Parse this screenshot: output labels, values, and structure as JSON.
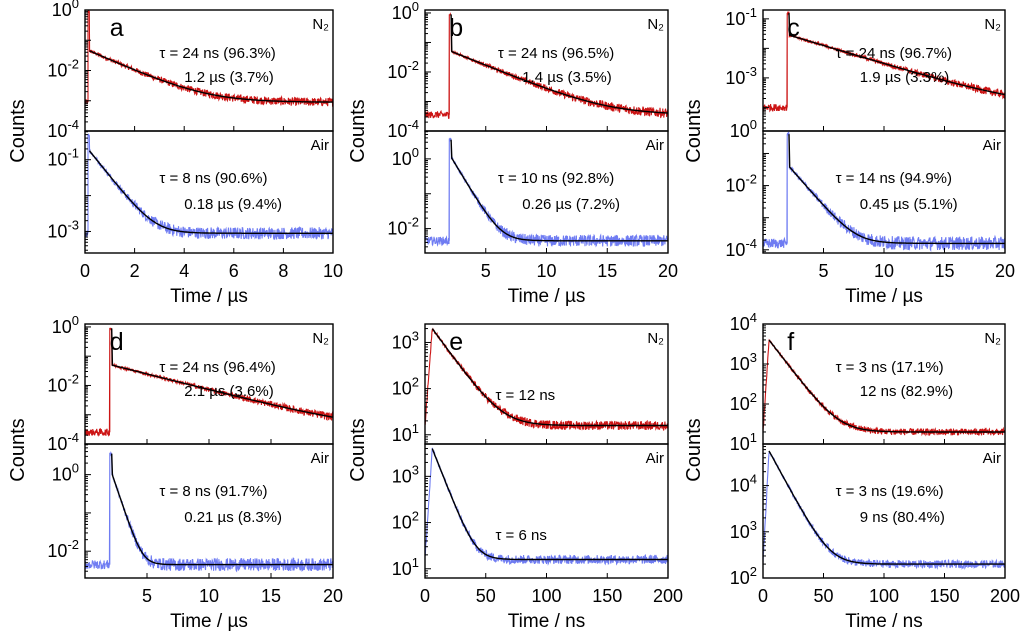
{
  "figure": {
    "ylabel": "Counts"
  },
  "colors": {
    "n2": "#cc1414",
    "air": "#6f7cf2",
    "fit": "#000000"
  },
  "chart_data": [
    {
      "id": "a",
      "type": "line",
      "letter": "a",
      "xlabel": "Time /  µs",
      "xlim": [
        0,
        10
      ],
      "xticks": [
        0,
        2,
        4,
        6,
        8,
        10
      ],
      "xticklabels": [
        "0",
        "2",
        "4",
        "6",
        "8",
        "10"
      ],
      "panels": [
        {
          "condition": "N₂",
          "log_ylim": [
            -4,
            0
          ],
          "tick_exps": [
            -4,
            -2,
            0
          ],
          "tick_labels": [
            "10-4",
            "10-2",
            "100"
          ],
          "annotations": [
            "τ = 24 ns (96.3%)",
            "1.2 µs (3.7%)"
          ],
          "decay": {
            "t0": 0.12,
            "rise": 0.06,
            "peak_log": -0.05,
            "jump_log": -1.35,
            "tail_tau": 1.2,
            "base_log": -3.05,
            "noise": 0.1
          }
        },
        {
          "condition": "Air",
          "log_ylim": [
            -3.6,
            -0.2
          ],
          "tick_exps": [
            -3,
            -1
          ],
          "tick_labels": [
            "10-3",
            "10-1"
          ],
          "annotations": [
            "τ = 8 ns (90.6%)",
            "0.18 µs (9.4%)"
          ],
          "decay": {
            "t0": 0.12,
            "rise": 0.06,
            "peak_log": -0.3,
            "jump_log": -0.75,
            "tail_tau": 0.5,
            "base_log": -3.05,
            "noise": 0.12
          }
        }
      ]
    },
    {
      "id": "b",
      "type": "line",
      "letter": "b",
      "xlabel": "Time /  µs",
      "xlim": [
        0,
        20
      ],
      "xticks": [
        5,
        10,
        15,
        20
      ],
      "xticklabels": [
        "5",
        "10",
        "15",
        "20"
      ],
      "panels": [
        {
          "condition": "N₂",
          "log_ylim": [
            -4,
            0.1
          ],
          "tick_exps": [
            -4,
            -2,
            0
          ],
          "tick_labels": [
            "10-4",
            "10-2",
            "100"
          ],
          "annotations": [
            "τ = 24 ns (96.5%)",
            "1.4 µs (3.5%)"
          ],
          "decay": {
            "t0": 2.0,
            "rise": 0.15,
            "peak_log": -0.05,
            "jump_log": -1.3,
            "tail_tau": 2.6,
            "base_log": -3.45,
            "noise": 0.12
          }
        },
        {
          "condition": "Air",
          "log_ylim": [
            -2.7,
            0.8
          ],
          "tick_exps": [
            -2,
            0
          ],
          "tick_labels": [
            "10-2",
            "100"
          ],
          "annotations": [
            "τ = 10 ns (92.8%)",
            "0.26 µs (7.2%)"
          ],
          "decay": {
            "t0": 2.0,
            "rise": 0.15,
            "peak_log": 0.55,
            "jump_log": 0.05,
            "tail_tau": 0.75,
            "base_log": -2.35,
            "noise": 0.12
          }
        }
      ]
    },
    {
      "id": "c",
      "type": "line",
      "letter": "c",
      "xlabel": "Time /  µs",
      "xlim": [
        0,
        20
      ],
      "xticks": [
        5,
        10,
        15,
        20
      ],
      "xticklabels": [
        "5",
        "10",
        "15",
        "20"
      ],
      "panels": [
        {
          "condition": "N₂",
          "log_ylim": [
            -4.8,
            -0.7
          ],
          "tick_exps": [
            -3,
            -1
          ],
          "tick_labels": [
            "10-3",
            "10-1"
          ],
          "extra_tick_label": "100",
          "annotations": [
            "τ = 24 ns (96.7%)",
            "1.9 µs (3.3%)"
          ],
          "decay": {
            "t0": 2.0,
            "rise": 0.15,
            "peak_log": -0.8,
            "jump_log": -1.55,
            "tail_tau": 3.5,
            "base_log": -4.0,
            "noise": 0.12
          }
        },
        {
          "condition": "Air",
          "log_ylim": [
            -4.1,
            -0.3
          ],
          "tick_exps": [
            -4,
            -2
          ],
          "tick_labels": [
            "10-4",
            "10-2"
          ],
          "annotations": [
            "τ = 14 ns (94.9%)",
            "0.45 µs (5.1%)"
          ],
          "decay": {
            "t0": 2.0,
            "rise": 0.15,
            "peak_log": -0.4,
            "jump_log": -1.4,
            "tail_tau": 1.0,
            "base_log": -3.8,
            "noise": 0.15
          }
        }
      ]
    },
    {
      "id": "d",
      "type": "line",
      "letter": "d",
      "xlabel": "Time /  µs",
      "xlim": [
        0,
        20
      ],
      "xticks": [
        5,
        10,
        15,
        20
      ],
      "xticklabels": [
        "5",
        "10",
        "15",
        "20"
      ],
      "panels": [
        {
          "condition": "N₂",
          "log_ylim": [
            -4,
            0.1
          ],
          "tick_exps": [
            -4,
            -2,
            0
          ],
          "tick_labels": [
            "10-4",
            "10-2",
            "100"
          ],
          "annotations": [
            "τ = 24 ns (96.4%)",
            "2.1 µs (3.6%)"
          ],
          "decay": {
            "t0": 2.0,
            "rise": 0.15,
            "peak_log": -0.05,
            "jump_log": -1.3,
            "tail_tau": 4.0,
            "base_log": -3.6,
            "noise": 0.12
          }
        },
        {
          "condition": "Air",
          "log_ylim": [
            -2.7,
            0.8
          ],
          "tick_exps": [
            -2,
            0
          ],
          "tick_labels": [
            "10-2",
            "100"
          ],
          "annotations": [
            "τ = 8 ns (91.7%)",
            "0.21 µs (8.3%)"
          ],
          "decay": {
            "t0": 2.0,
            "rise": 0.15,
            "peak_log": 0.55,
            "jump_log": 0.05,
            "tail_tau": 0.45,
            "base_log": -2.35,
            "noise": 0.12
          }
        }
      ]
    },
    {
      "id": "e",
      "type": "line",
      "letter": "e",
      "xlabel": "Time /  ns",
      "xlim": [
        0,
        200
      ],
      "xticks": [
        0,
        50,
        100,
        150,
        200
      ],
      "xticklabels": [
        "0",
        "50",
        "100",
        "150",
        "200"
      ],
      "panels": [
        {
          "condition": "N₂",
          "log_ylim": [
            0.8,
            3.4
          ],
          "tick_exps": [
            1,
            2,
            3
          ],
          "tick_labels": [
            "101",
            "102",
            "103"
          ],
          "annotations": [
            "τ = 12 ns"
          ],
          "decay": {
            "t0": 0,
            "rise": 6,
            "peak_log": 3.3,
            "jump_log": 3.3,
            "tail_tau": 12,
            "base_log": 1.2,
            "noise": 0.07,
            "smooth_rise": true
          }
        },
        {
          "condition": "Air",
          "log_ylim": [
            0.8,
            3.7
          ],
          "tick_exps": [
            1,
            2,
            3
          ],
          "tick_labels": [
            "101",
            "102",
            "103"
          ],
          "annotations": [
            "τ = 6 ns"
          ],
          "decay": {
            "t0": 0,
            "rise": 6,
            "peak_log": 3.6,
            "jump_log": 3.6,
            "tail_tau": 6.5,
            "base_log": 1.2,
            "noise": 0.07,
            "smooth_rise": true
          }
        }
      ]
    },
    {
      "id": "f",
      "type": "line",
      "letter": "f",
      "xlabel": "Time / ns",
      "xlim": [
        0,
        200
      ],
      "xticks": [
        0,
        50,
        100,
        150,
        200
      ],
      "xticklabels": [
        "0",
        "50",
        "100",
        "150",
        "200"
      ],
      "panels": [
        {
          "condition": "N₂",
          "log_ylim": [
            1,
            4
          ],
          "tick_exps": [
            1,
            2,
            3,
            4
          ],
          "tick_labels": [
            "101",
            "102",
            "103",
            "104"
          ],
          "annotations": [
            "τ = 3 ns (17.1%)",
            "12 ns (82.9%)"
          ],
          "decay": {
            "t0": 0,
            "rise": 5,
            "peak_log": 3.6,
            "jump_log": 3.6,
            "tail_tau": 11,
            "base_log": 1.3,
            "noise": 0.06,
            "smooth_rise": true
          }
        },
        {
          "condition": "Air",
          "log_ylim": [
            2,
            4.9
          ],
          "tick_exps": [
            2,
            3,
            4
          ],
          "tick_labels": [
            "102",
            "103",
            "104"
          ],
          "annotations": [
            "τ = 3 ns (19.6%)",
            "9 ns (80.4%)"
          ],
          "decay": {
            "t0": 0,
            "rise": 5,
            "peak_log": 4.75,
            "jump_log": 4.75,
            "tail_tau": 9,
            "base_log": 2.3,
            "noise": 0.06,
            "smooth_rise": true
          }
        }
      ]
    }
  ]
}
